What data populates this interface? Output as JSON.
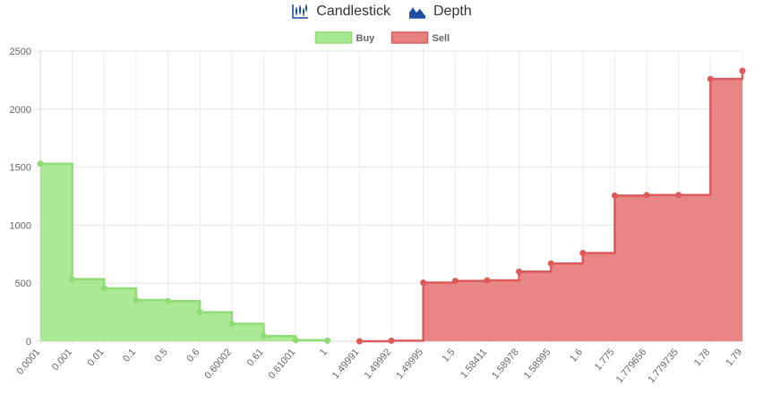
{
  "tabs": [
    {
      "label": "Candlestick",
      "icon": "candlestick-chart-icon"
    },
    {
      "label": "Depth",
      "icon": "area-chart-icon"
    }
  ],
  "colors": {
    "buy_fill": "#a6e88f",
    "buy_line": "#8fdc74",
    "sell_fill": "#e77f7e",
    "sell_line": "#dc5a5a",
    "tab_icon": "#1f4fa0"
  },
  "chart_data": {
    "type": "area",
    "step": true,
    "legend": [
      "Buy",
      "Sell"
    ],
    "legend_position": "top-center",
    "grid": true,
    "ylim": [
      0,
      2500
    ],
    "yticks": [
      0,
      500,
      1000,
      1500,
      2000,
      2500
    ],
    "categories": [
      "0.0001",
      "0.001",
      "0.01",
      "0.1",
      "0.5",
      "0.6",
      "0.60002",
      "0.61",
      "0.61001",
      "1",
      "1.49991",
      "1.49992",
      "1.49995",
      "1.5",
      "1.58411",
      "1.58978",
      "1.58995",
      "1.6",
      "1.775",
      "1.779656",
      "1.779735",
      "1.78",
      "1.79"
    ],
    "series": [
      {
        "name": "Buy",
        "values": [
          1530,
          535,
          455,
          355,
          345,
          250,
          150,
          45,
          10,
          5,
          null,
          null,
          null,
          null,
          null,
          null,
          null,
          null,
          null,
          null,
          null,
          null,
          null
        ]
      },
      {
        "name": "Sell",
        "values": [
          null,
          null,
          null,
          null,
          null,
          null,
          null,
          null,
          null,
          null,
          0,
          5,
          505,
          520,
          525,
          600,
          670,
          760,
          1255,
          1260,
          1260,
          2260,
          2330
        ]
      }
    ]
  }
}
